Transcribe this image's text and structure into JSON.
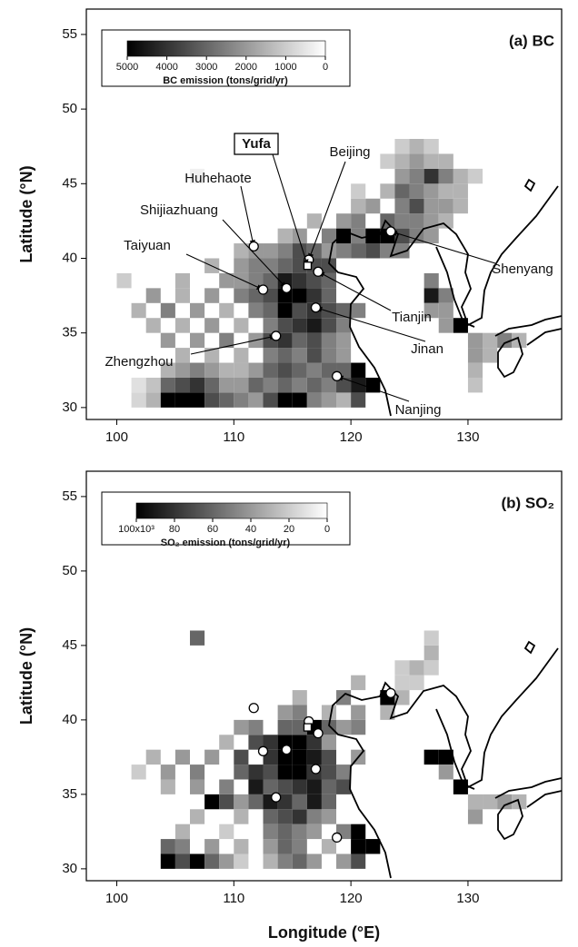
{
  "chart_data": [
    {
      "type": "heatmap",
      "title": "(a) BC",
      "ylabel": "Latitude (°N)",
      "xlim": [
        97.4,
        138
      ],
      "ylim": [
        29.2,
        56.7
      ],
      "xticks": [
        100,
        110,
        120,
        130
      ],
      "yticks": [
        30,
        35,
        40,
        45,
        50,
        55
      ],
      "colorbar": {
        "label": "BC emission (tons/grid/yr)",
        "clim": [
          5000,
          0
        ],
        "ticks": [
          5000,
          4000,
          3000,
          2000,
          1000,
          0
        ]
      },
      "rows": [
        {
          "y": 30,
          "x": [
            101.25,
            102.5,
            103.75,
            105,
            106.25,
            107.5,
            108.75,
            110,
            111.25,
            112.5,
            113.75,
            115,
            116.25,
            117.5,
            118.75,
            120
          ],
          "values": [
            800,
            1500,
            5000,
            5000,
            5000,
            3500,
            3000,
            2500,
            2000,
            3500,
            5000,
            5000,
            2500,
            2000,
            1500,
            3500
          ]
        },
        {
          "y": 31,
          "x": [
            101.25,
            102.5,
            103.75,
            105,
            106.25,
            107.5,
            108.75,
            110,
            111.25,
            112.5,
            113.75,
            115,
            116.25,
            117.5,
            118.75,
            120,
            121.25
          ],
          "values": [
            600,
            1200,
            3000,
            3500,
            4000,
            3000,
            2000,
            2000,
            3000,
            2500,
            3000,
            2500,
            3000,
            2500,
            3500,
            4500,
            5000
          ]
        },
        {
          "y": 32,
          "x": [
            103.75,
            105,
            106.25,
            107.5,
            108.75,
            110,
            111.25,
            112.5,
            113.75,
            115,
            116.25,
            117.5,
            118.75,
            120
          ],
          "values": [
            1500,
            2000,
            2500,
            2000,
            1500,
            1500,
            2000,
            3000,
            3500,
            3000,
            2500,
            3000,
            3000,
            5000
          ]
        },
        {
          "y": 33,
          "x": [
            105,
            107.5,
            110,
            112.5,
            113.75,
            115,
            116.25,
            117.5,
            118.75
          ],
          "values": [
            1500,
            1500,
            1500,
            2500,
            3000,
            2500,
            3500,
            2500,
            2000
          ]
        },
        {
          "y": 34,
          "x": [
            103.75,
            106.25,
            108.75,
            111.25,
            112.5,
            113.75,
            115,
            116.25,
            117.5,
            118.75
          ],
          "values": [
            2000,
            2000,
            2500,
            2000,
            3500,
            4000,
            3000,
            3500,
            2500,
            2000
          ]
        },
        {
          "y": 35,
          "x": [
            102.5,
            105,
            107.5,
            110,
            112.5,
            113.75,
            115,
            116.25,
            117.5,
            118.75
          ],
          "values": [
            1500,
            1500,
            2000,
            1500,
            2500,
            3500,
            4000,
            4500,
            3500,
            2500
          ]
        },
        {
          "y": 36,
          "x": [
            101.25,
            103.75,
            106.25,
            108.75,
            111.25,
            112.5,
            113.75,
            115,
            116.25,
            117.5,
            118.75,
            120
          ],
          "values": [
            1500,
            2500,
            2000,
            1500,
            2500,
            3000,
            5000,
            3500,
            4000,
            3500,
            3000,
            2500
          ]
        },
        {
          "y": 37,
          "x": [
            102.5,
            105,
            107.5,
            110,
            111.25,
            112.5,
            113.75,
            115,
            116.25,
            117.5
          ],
          "values": [
            2000,
            1500,
            2000,
            2500,
            3000,
            3500,
            5000,
            5000,
            4000,
            3000
          ]
        },
        {
          "y": 38,
          "x": [
            100,
            105,
            108.75,
            110,
            111.25,
            112.5,
            113.75,
            115,
            116.25,
            117.5
          ],
          "values": [
            1000,
            1500,
            2000,
            2000,
            2500,
            3000,
            4500,
            4000,
            3500,
            3000
          ]
        },
        {
          "y": 39,
          "x": [
            107.5,
            110,
            111.25,
            112.5,
            113.75,
            115,
            116.25,
            117.5
          ],
          "values": [
            1500,
            2000,
            2500,
            2500,
            3000,
            3500,
            3500,
            3500
          ]
        },
        {
          "y": 40,
          "x": [
            110,
            111.25,
            112.5,
            113.75,
            115,
            116.25,
            117.5,
            118.75,
            120,
            121.25,
            122.5,
            123.75
          ],
          "values": [
            1500,
            2000,
            2000,
            2500,
            3500,
            3000,
            2000,
            2500,
            3000,
            3500,
            2500,
            2500
          ]
        },
        {
          "y": 41,
          "x": [
            113.75,
            115,
            117.5,
            118.75,
            120,
            121.25,
            122.5,
            123.75,
            125,
            126.25
          ],
          "values": [
            1500,
            2000,
            2500,
            5000,
            2500,
            5000,
            5000,
            3500,
            2500,
            2000
          ]
        },
        {
          "y": 42,
          "x": [
            116.25,
            118.75,
            120,
            122.5,
            123.75,
            125,
            126.25,
            127.5
          ],
          "values": [
            1500,
            2000,
            2500,
            3000,
            2500,
            2500,
            2000,
            1500
          ]
        },
        {
          "y": 43,
          "x": [
            120,
            121.25,
            123.75,
            125,
            126.25,
            127.5,
            128.75
          ],
          "values": [
            1500,
            2000,
            2500,
            3500,
            2000,
            2000,
            1500
          ]
        },
        {
          "y": 44,
          "x": [
            120,
            122.5,
            123.75,
            125,
            126.25,
            127.5,
            128.75
          ],
          "values": [
            1000,
            1500,
            3000,
            2500,
            2000,
            1500,
            1500
          ]
        },
        {
          "y": 45,
          "x": [
            106.25,
            123.75,
            125,
            126.25,
            127.5,
            128.75,
            130
          ],
          "values": [
            300,
            2000,
            2500,
            4000,
            2500,
            1500,
            1000
          ]
        },
        {
          "y": 46,
          "x": [
            122.5,
            123.75,
            125,
            126.25,
            127.5
          ],
          "values": [
            1000,
            1500,
            2000,
            1500,
            1500
          ]
        },
        {
          "y": 47,
          "x": [
            123.75,
            125,
            126.25
          ],
          "values": [
            1000,
            1500,
            1000
          ]
        },
        {
          "y": 38,
          "x": [
            126.25
          ],
          "values": [
            2500
          ]
        },
        {
          "y": 37,
          "x": [
            126.25,
            127.5
          ],
          "values": [
            4500,
            2500
          ]
        },
        {
          "y": 36,
          "x": [
            126.25,
            127.5
          ],
          "values": [
            2000,
            2000
          ]
        },
        {
          "y": 35,
          "x": [
            127.5,
            128.75
          ],
          "values": [
            2000,
            5000
          ]
        },
        {
          "y": 34,
          "x": [
            130,
            131.25,
            132.5,
            133.75
          ],
          "values": [
            2000,
            1500,
            2500,
            1500
          ]
        },
        {
          "y": 33,
          "x": [
            130,
            131.25
          ],
          "values": [
            2000,
            1500
          ]
        },
        {
          "y": 32,
          "x": [
            130
          ],
          "values": [
            1500
          ]
        },
        {
          "y": 31,
          "x": [
            130
          ],
          "values": [
            1200
          ]
        }
      ],
      "points": {
        "names": [
          "Beijing",
          "Huhehaote",
          "Shijiazhuang",
          "Taiyuan",
          "Zhengzhou",
          "Tianjin",
          "Jinan",
          "Nanjing",
          "Shenyang"
        ],
        "x": [
          116.4,
          111.7,
          114.5,
          112.5,
          113.6,
          117.2,
          117.0,
          118.8,
          123.4
        ],
        "y": [
          39.9,
          40.8,
          38.0,
          37.9,
          34.8,
          39.1,
          36.7,
          32.1,
          41.8
        ]
      },
      "site": {
        "name": "Yufa",
        "x": 116.3,
        "y": 39.5
      }
    },
    {
      "type": "heatmap",
      "title": "(b) SO₂",
      "xlabel": "Longitude (°E)",
      "ylabel": "Latitude (°N)",
      "xlim": [
        97.4,
        138
      ],
      "ylim": [
        29.2,
        56.7
      ],
      "xticks": [
        100,
        110,
        120,
        130
      ],
      "yticks": [
        30,
        35,
        40,
        45,
        50,
        55
      ],
      "colorbar": {
        "label": "SO₂ emission (tons/grid/yr)",
        "clim": [
          100000,
          0
        ],
        "ticks": [
          {
            "value": 100000,
            "label": "100x10³"
          },
          {
            "value": 80000,
            "label": "80"
          },
          {
            "value": 60000,
            "label": "60"
          },
          {
            "value": 40000,
            "label": "40"
          },
          {
            "value": 20000,
            "label": "20"
          },
          0
        ]
      },
      "rows": [
        {
          "y": 30,
          "x": [
            103.75,
            105,
            106.25,
            107.5,
            108.75,
            110,
            112.5,
            113.75,
            115,
            116.25,
            118.75,
            120
          ],
          "values": [
            100000,
            70000,
            100000,
            60000,
            40000,
            20000,
            30000,
            50000,
            60000,
            40000,
            40000,
            70000
          ]
        },
        {
          "y": 31,
          "x": [
            103.75,
            105,
            107.5,
            110,
            112.5,
            113.75,
            115,
            117.5,
            120,
            121.25
          ],
          "values": [
            60000,
            50000,
            40000,
            30000,
            40000,
            60000,
            50000,
            30000,
            100000,
            100000
          ]
        },
        {
          "y": 32,
          "x": [
            105,
            108.75,
            112.5,
            113.75,
            115,
            116.25,
            118.75,
            120
          ],
          "values": [
            30000,
            20000,
            50000,
            60000,
            50000,
            40000,
            50000,
            100000
          ]
        },
        {
          "y": 33,
          "x": [
            106.25,
            110,
            112.5,
            113.75,
            115,
            116.25,
            117.5
          ],
          "values": [
            30000,
            30000,
            60000,
            70000,
            80000,
            50000,
            40000
          ]
        },
        {
          "y": 34,
          "x": [
            107.5,
            108.75,
            110,
            111.25,
            112.5,
            113.75,
            115,
            116.25,
            117.5
          ],
          "values": [
            100000,
            70000,
            40000,
            60000,
            90000,
            80000,
            60000,
            90000,
            60000
          ]
        },
        {
          "y": 35,
          "x": [
            103.75,
            106.25,
            108.75,
            111.25,
            112.5,
            113.75,
            115,
            116.25,
            117.5,
            118.75
          ],
          "values": [
            30000,
            40000,
            50000,
            90000,
            60000,
            70000,
            80000,
            90000,
            60000,
            70000
          ]
        },
        {
          "y": 36,
          "x": [
            101.25,
            103.75,
            106.25,
            110,
            111.25,
            112.5,
            113.75,
            115,
            116.25,
            117.5,
            118.75
          ],
          "values": [
            20000,
            40000,
            50000,
            60000,
            80000,
            70000,
            100000,
            100000,
            80000,
            70000,
            50000
          ]
        },
        {
          "y": 37,
          "x": [
            102.5,
            105,
            107.5,
            110,
            112.5,
            113.75,
            115,
            116.25,
            117.5,
            120
          ],
          "values": [
            30000,
            40000,
            40000,
            70000,
            80000,
            100000,
            100000,
            90000,
            70000,
            40000
          ]
        },
        {
          "y": 38,
          "x": [
            108.75,
            111.25,
            112.5,
            113.75,
            115,
            116.25,
            117.5
          ],
          "values": [
            30000,
            70000,
            80000,
            100000,
            100000,
            80000,
            40000
          ]
        },
        {
          "y": 39,
          "x": [
            110,
            111.25,
            113.75,
            115,
            116.25,
            117.5,
            118.75,
            120
          ],
          "values": [
            40000,
            50000,
            60000,
            60000,
            100000,
            60000,
            40000,
            50000
          ]
        },
        {
          "y": 40,
          "x": [
            113.75,
            115,
            117.5,
            120,
            122.5
          ],
          "values": [
            40000,
            50000,
            30000,
            40000,
            30000
          ]
        },
        {
          "y": 41,
          "x": [
            115,
            118.75,
            122.5,
            123.75
          ],
          "values": [
            30000,
            50000,
            100000,
            30000
          ]
        },
        {
          "y": 42,
          "x": [
            120,
            123.75,
            125
          ],
          "values": [
            30000,
            20000,
            20000
          ]
        },
        {
          "y": 43,
          "x": [
            123.75,
            125,
            126.25
          ],
          "values": [
            20000,
            30000,
            20000
          ]
        },
        {
          "y": 44,
          "x": [
            126.25
          ],
          "values": [
            30000
          ]
        },
        {
          "y": 45,
          "x": [
            106.25,
            126.25
          ],
          "values": [
            60000,
            20000
          ]
        },
        {
          "y": 37,
          "x": [
            126.25,
            127.5
          ],
          "values": [
            100000,
            100000
          ]
        },
        {
          "y": 36,
          "x": [
            127.5
          ],
          "values": [
            40000
          ]
        },
        {
          "y": 35,
          "x": [
            128.75
          ],
          "values": [
            100000
          ]
        },
        {
          "y": 34,
          "x": [
            130,
            131.25,
            132.5,
            133.75
          ],
          "values": [
            30000,
            30000,
            40000,
            30000
          ]
        },
        {
          "y": 33,
          "x": [
            130
          ],
          "values": [
            40000
          ]
        }
      ],
      "points": {
        "x": [
          116.4,
          111.7,
          114.5,
          112.5,
          113.6,
          117.2,
          117.0,
          118.8,
          123.4
        ],
        "y": [
          39.9,
          40.8,
          38.0,
          37.9,
          34.8,
          39.1,
          36.7,
          32.1,
          41.8
        ]
      },
      "site": {
        "x": 116.3,
        "y": 39.5
      }
    }
  ]
}
